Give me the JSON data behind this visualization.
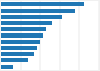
{
  "values": [
    85,
    75,
    62,
    52,
    46,
    43,
    40,
    37,
    34,
    28,
    12
  ],
  "bar_color": "#2077b4",
  "background_color": "#f0f0f0",
  "plot_background": "#ffffff",
  "xlim_max": 100,
  "figsize": [
    1.0,
    0.71
  ],
  "dpi": 100,
  "bar_height": 0.65,
  "grid_lines": [
    20,
    40,
    60,
    80,
    100
  ]
}
